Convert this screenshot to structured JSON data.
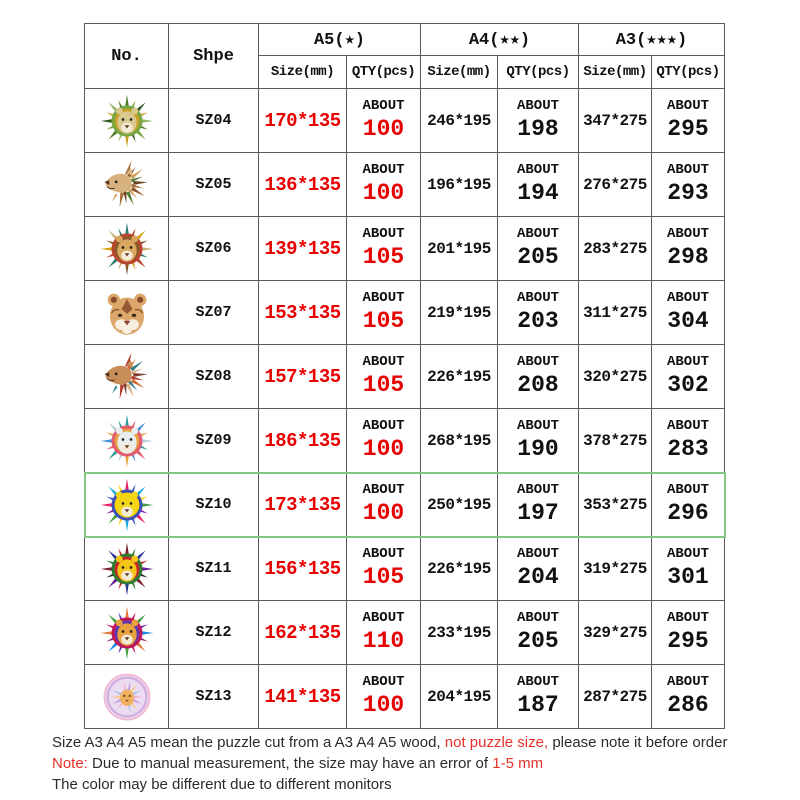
{
  "colors": {
    "table_red": "#e60000",
    "footer_red": "#e6312a",
    "border_gray": "#595959",
    "highlight_green": "#84c784",
    "text_black": "#111111"
  },
  "table": {
    "col_no_label": "No.",
    "col_shape_label": "Shpe",
    "about_label": "ABOUT",
    "groups": [
      {
        "label": "A5(★)",
        "size_label": "Size(mm)",
        "qty_label": "QTY(pcs)"
      },
      {
        "label": "A4(★★)",
        "size_label": "Size(mm)",
        "qty_label": "QTY(pcs)"
      },
      {
        "label": "A3(★★★)",
        "size_label": "Size(mm)",
        "qty_label": "QTY(pcs)"
      }
    ],
    "rows": [
      {
        "code": "SZ04",
        "a5_size": "170*135",
        "a5_qty": "100",
        "a4_size": "246*195",
        "a4_qty": "198",
        "a3_size": "347*275",
        "a3_qty": "295",
        "highlighted": false,
        "thumb": {
          "name": "green-geometric-lion",
          "type": "front",
          "face": "#d9c98f",
          "accent": "#6b4423",
          "mane": [
            "#4f7d2c",
            "#77a643",
            "#2d5a1e",
            "#c9a227",
            "#93b56a"
          ]
        }
      },
      {
        "code": "SZ05",
        "a5_size": "136*135",
        "a5_qty": "100",
        "a4_size": "196*195",
        "a4_qty": "194",
        "a3_size": "276*275",
        "a3_qty": "293",
        "highlighted": false,
        "thumb": {
          "name": "brown-profile-lion",
          "type": "profile",
          "face": "#d8b27e",
          "accent": "#6b4423",
          "mane": [
            "#a86f38",
            "#8a5526",
            "#d2a05c",
            "#54803c",
            "#6b4423"
          ]
        }
      },
      {
        "code": "SZ06",
        "a5_size": "139*135",
        "a5_qty": "105",
        "a4_size": "201*195",
        "a4_qty": "205",
        "a3_size": "283*275",
        "a3_qty": "298",
        "highlighted": false,
        "thumb": {
          "name": "teal-gold-geometric-lion",
          "type": "front",
          "face": "#d9a75f",
          "accent": "#6b4423",
          "mane": [
            "#2e7d74",
            "#b8452e",
            "#d4a017",
            "#8a5a2b",
            "#c8b17a"
          ]
        }
      },
      {
        "code": "SZ07",
        "a5_size": "153*135",
        "a5_qty": "105",
        "a4_size": "219*195",
        "a4_qty": "203",
        "a3_size": "311*275",
        "a3_qty": "304",
        "highlighted": false,
        "thumb": {
          "name": "ornate-lioness-head",
          "type": "face",
          "face": "#dba76a",
          "accent": "#8a4a2b",
          "mane": [
            "#dba76a",
            "#b0703a",
            "#8a4a2b",
            "#f0e3cf"
          ]
        }
      },
      {
        "code": "SZ08",
        "a5_size": "157*135",
        "a5_qty": "105",
        "a4_size": "226*195",
        "a4_qty": "208",
        "a3_size": "320*275",
        "a3_qty": "302",
        "highlighted": false,
        "thumb": {
          "name": "red-teal-profile-lion",
          "type": "profile",
          "face": "#c98d5a",
          "accent": "#4a2e1a",
          "mane": [
            "#b63a2b",
            "#d36b2f",
            "#2e7d8c",
            "#d9b38c",
            "#803d2e"
          ]
        }
      },
      {
        "code": "SZ09",
        "a5_size": "186*135",
        "a5_qty": "100",
        "a4_size": "268*195",
        "a4_qty": "190",
        "a3_size": "378*275",
        "a3_qty": "283",
        "highlighted": false,
        "thumb": {
          "name": "pastel-lineart-lion",
          "type": "front",
          "face": "#e8eef0",
          "accent": "#4a6a7a",
          "mane": [
            "#2e9d9c",
            "#e05c6e",
            "#4a90d9",
            "#e8a13d",
            "#b8d0d8"
          ]
        }
      },
      {
        "code": "SZ10",
        "a5_size": "173*135",
        "a5_qty": "100",
        "a4_size": "250*195",
        "a4_qty": "197",
        "a3_size": "353*275",
        "a3_qty": "296",
        "highlighted": true,
        "thumb": {
          "name": "rainbow-popart-lion",
          "type": "front",
          "face": "#f2d516",
          "accent": "#1a1a1a",
          "mane": [
            "#e91e63",
            "#3f51b5",
            "#1fa8d8",
            "#ffd400",
            "#43a047",
            "#8e24aa"
          ]
        }
      },
      {
        "code": "SZ11",
        "a5_size": "156*135",
        "a5_qty": "105",
        "a4_size": "226*195",
        "a4_qty": "204",
        "a3_size": "319*275",
        "a3_qty": "301",
        "highlighted": false,
        "thumb": {
          "name": "yellow-face-dark-mane-lion",
          "type": "front",
          "face": "#f5c518",
          "accent": "#1a1a1a",
          "mane": [
            "#7b1f2e",
            "#2e7d32",
            "#283593",
            "#c62828",
            "#6a1b9a",
            "#2a2a2a"
          ]
        }
      },
      {
        "code": "SZ12",
        "a5_size": "162*135",
        "a5_qty": "110",
        "a4_size": "233*195",
        "a4_qty": "205",
        "a3_size": "329*275",
        "a3_qty": "295",
        "highlighted": false,
        "thumb": {
          "name": "painterly-rainbow-lion",
          "type": "front",
          "face": "#e8a13d",
          "accent": "#26a69a",
          "mane": [
            "#e07b39",
            "#c2185b",
            "#43a047",
            "#5e35b1",
            "#1e88e5",
            "#8a2d6b"
          ]
        }
      },
      {
        "code": "SZ13",
        "a5_size": "141*135",
        "a5_qty": "100",
        "a4_size": "204*195",
        "a4_qty": "187",
        "a3_size": "287*275",
        "a3_qty": "286",
        "highlighted": false,
        "thumb": {
          "name": "round-watercolor-lion",
          "type": "circle",
          "face": "#f0b060",
          "accent": "#c49bd8",
          "mane": [
            "#f3b6d0",
            "#c49bd8",
            "#f7c98a",
            "#a9c4e8",
            "#ecdcf2"
          ]
        }
      }
    ]
  },
  "footnotes": [
    [
      {
        "t": "Size A3 A4 A5 mean the puzzle cut from a A3 A4 A5 wood, ",
        "red": false
      },
      {
        "t": "not puzzle size,",
        "red": true
      },
      {
        "t": " please note it before order",
        "red": false
      }
    ],
    [
      {
        "t": "Note:",
        "red": true
      },
      {
        "t": " Due to manual measurement, the size may have an error of ",
        "red": false
      },
      {
        "t": "1-5 mm",
        "red": true
      }
    ],
    [
      {
        "t": "The color may be different due to different monitors",
        "red": false
      }
    ]
  ]
}
